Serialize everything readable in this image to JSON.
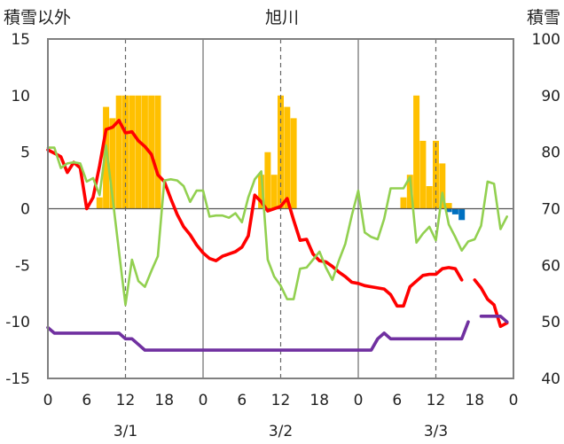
{
  "chart_data": {
    "type": "bar+line",
    "title": "旭川",
    "left_axis_label": "積雪以外",
    "right_axis_label": "積雪",
    "left_ylim": [
      -15,
      15
    ],
    "left_yticks": [
      -15,
      -10,
      -5,
      0,
      5,
      10,
      15
    ],
    "right_ylim": [
      40,
      100
    ],
    "right_yticks": [
      40,
      50,
      60,
      70,
      80,
      90,
      100
    ],
    "xlim": [
      0,
      72
    ],
    "x_ticks": [
      0,
      6,
      12,
      18,
      24,
      30,
      36,
      42,
      48,
      54,
      60,
      66,
      72
    ],
    "x_tick_labels": [
      "0",
      "6",
      "12",
      "18",
      "0",
      "6",
      "12",
      "18",
      "0",
      "6",
      "12",
      "18",
      "0"
    ],
    "day_labels": [
      {
        "x": 12,
        "label": "3/1"
      },
      {
        "x": 36,
        "label": "3/2"
      },
      {
        "x": 60,
        "label": "3/3"
      }
    ],
    "day_separators": [
      24,
      48
    ],
    "noon_lines": [
      12,
      36,
      60
    ],
    "grid": false,
    "legend": "none",
    "series": [
      {
        "kind": "bar",
        "axis": "left",
        "color": "#ffc000",
        "x": [
          8,
          9,
          10,
          11,
          12,
          13,
          14,
          15,
          16,
          17,
          33,
          34,
          35,
          36,
          37,
          38,
          55,
          56,
          57,
          58,
          59,
          60,
          61,
          62
        ],
        "values": [
          1,
          9,
          8,
          10,
          10,
          10,
          10,
          10,
          10,
          10,
          3,
          5,
          3,
          10,
          9,
          8,
          1,
          3,
          10,
          6,
          2,
          6,
          4,
          0.5
        ]
      },
      {
        "kind": "bar",
        "axis": "left",
        "color": "#0070c0",
        "x": [
          62,
          63,
          64
        ],
        "values": [
          -0.3,
          -0.5,
          -1
        ]
      },
      {
        "kind": "line",
        "axis": "left",
        "color": "#ff0000",
        "x": [
          0,
          1,
          2,
          3,
          4,
          5,
          6,
          7,
          8,
          9,
          10,
          11,
          12,
          13,
          14,
          15,
          16,
          17,
          18,
          19,
          20,
          21,
          22,
          23,
          24,
          25,
          26,
          27,
          28,
          29,
          30,
          31,
          32,
          33,
          34,
          35,
          36,
          37,
          38,
          39,
          40,
          41,
          42,
          43,
          44,
          45,
          46,
          47,
          48,
          49,
          50,
          51,
          52,
          53,
          54,
          55,
          56,
          57,
          58,
          59,
          60,
          61,
          62,
          63,
          64,
          null,
          66,
          67,
          68,
          69,
          70,
          71
        ],
        "values": [
          5.2,
          4.9,
          4.6,
          3.2,
          4.1,
          3.6,
          0,
          1.0,
          3.8,
          7.0,
          7.2,
          7.8,
          6.7,
          6.8,
          6.0,
          5.5,
          4.8,
          3.0,
          2.4,
          0.9,
          -0.5,
          -1.6,
          -2.3,
          -3.2,
          -3.9,
          -4.4,
          -4.6,
          -4.2,
          -4.0,
          -3.8,
          -3.4,
          -2.4,
          1.2,
          0.6,
          -0.2,
          0.0,
          0.2,
          0.9,
          -1.0,
          -2.8,
          -2.7,
          -4.0,
          -4.6,
          -4.7,
          -5.1,
          -5.6,
          -6.0,
          -6.5,
          -6.6,
          -6.8,
          -6.9,
          -7.0,
          -7.1,
          -7.6,
          -8.6,
          -8.6,
          -6.9,
          -6.4,
          -5.9,
          -5.8,
          -5.8,
          -5.3,
          -5.2,
          -5.3,
          -6.3,
          null,
          -6.3,
          -7.0,
          -8.0,
          -8.5,
          -10.4,
          -10.1
        ]
      },
      {
        "kind": "line",
        "axis": "left",
        "color": "#92d050",
        "x": [
          0,
          1,
          2,
          3,
          4,
          5,
          6,
          7,
          8,
          9,
          10,
          11,
          12,
          13,
          14,
          15,
          16,
          17,
          18,
          19,
          20,
          21,
          22,
          23,
          24,
          25,
          26,
          27,
          28,
          29,
          30,
          31,
          32,
          33,
          34,
          35,
          36,
          37,
          38,
          39,
          40,
          41,
          42,
          43,
          44,
          45,
          46,
          47,
          48,
          49,
          50,
          51,
          52,
          53,
          54,
          55,
          56,
          57,
          58,
          59,
          60,
          61,
          62,
          63,
          64,
          65,
          66,
          67,
          68,
          69,
          70,
          71
        ],
        "values": [
          5.4,
          5.4,
          3.6,
          4.0,
          4.1,
          4.0,
          2.4,
          2.7,
          1.2,
          5.6,
          1.0,
          -3.8,
          -8.5,
          -4.5,
          -6.4,
          -6.9,
          -5.5,
          -4.2,
          2.5,
          2.6,
          2.5,
          2.0,
          0.6,
          1.6,
          1.6,
          -0.7,
          -0.6,
          -0.6,
          -0.8,
          -0.4,
          -1.2,
          1.0,
          2.6,
          3.3,
          -4.5,
          -6.0,
          -6.8,
          -8.0,
          -8.0,
          -5.3,
          -5.2,
          -4.5,
          -3.8,
          -5.2,
          -6.3,
          -4.6,
          -3.1,
          -0.6,
          1.6,
          -2.1,
          -2.5,
          -2.7,
          -0.9,
          1.8,
          1.8,
          1.8,
          2.8,
          -3.0,
          -2.2,
          -1.6,
          -2.8,
          1.4,
          -1.4,
          -2.5,
          -3.7,
          -2.9,
          -2.7,
          -1.5,
          2.4,
          2.2,
          -1.8,
          -0.7
        ]
      },
      {
        "kind": "line",
        "axis": "right",
        "color": "#7030a0",
        "x": [
          0,
          1,
          2,
          3,
          4,
          5,
          6,
          7,
          8,
          9,
          10,
          11,
          12,
          13,
          14,
          15,
          16,
          17,
          18,
          19,
          20,
          21,
          22,
          23,
          24,
          25,
          26,
          27,
          28,
          29,
          30,
          31,
          32,
          33,
          34,
          35,
          36,
          37,
          38,
          39,
          40,
          41,
          42,
          43,
          44,
          45,
          46,
          47,
          48,
          49,
          50,
          51,
          52,
          53,
          54,
          55,
          56,
          57,
          58,
          59,
          60,
          61,
          62,
          63,
          64,
          65,
          66,
          67,
          68,
          69,
          70,
          71
        ],
        "values": [
          49,
          48,
          48,
          48,
          48,
          48,
          48,
          48,
          48,
          48,
          48,
          48,
          47,
          47,
          46,
          45,
          45,
          45,
          45,
          45,
          45,
          45,
          45,
          45,
          45,
          45,
          45,
          45,
          45,
          45,
          45,
          45,
          45,
          45,
          45,
          45,
          45,
          45,
          45,
          45,
          45,
          45,
          45,
          45,
          45,
          45,
          45,
          45,
          45,
          45,
          45,
          47,
          48,
          47,
          47,
          47,
          47,
          47,
          47,
          47,
          47,
          47,
          47,
          47,
          47,
          50,
          null,
          51,
          51,
          51,
          51,
          50
        ]
      }
    ]
  }
}
